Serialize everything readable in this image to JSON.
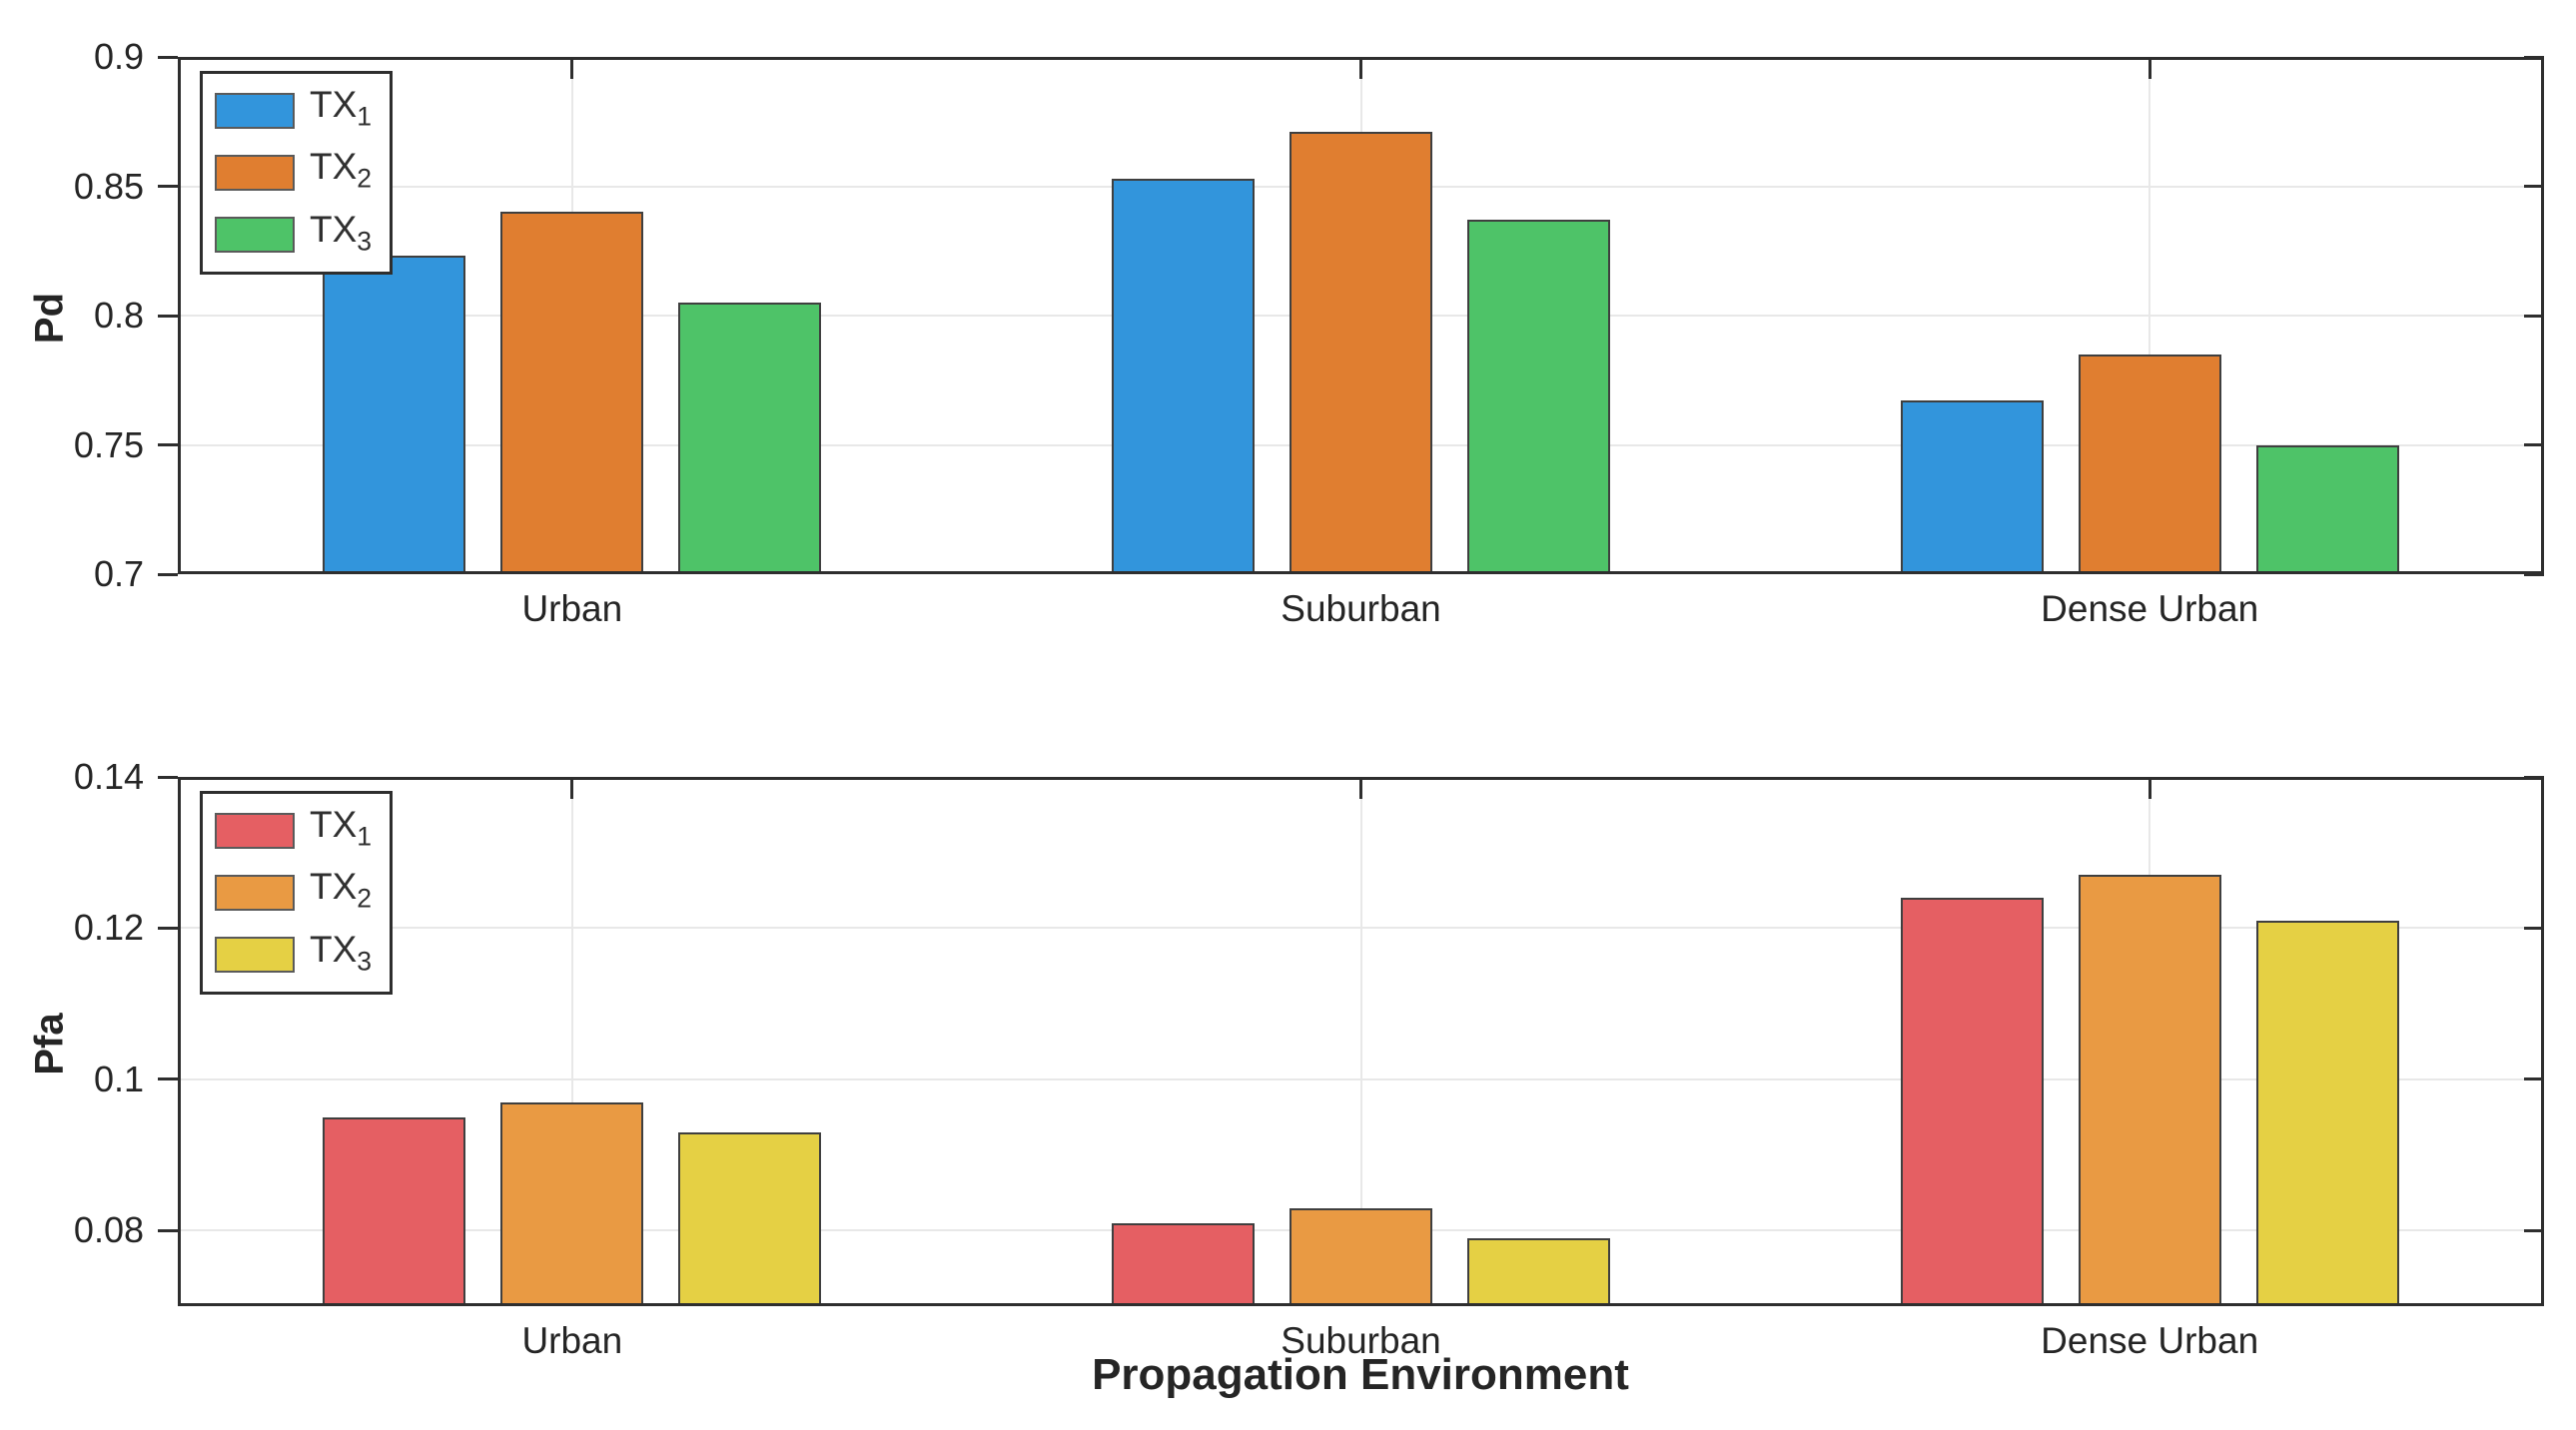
{
  "figure": {
    "background": "#ffffff",
    "axis_color": "#2e2e2e",
    "grid_color": "#e8e8e8",
    "text_color": "#252525"
  },
  "chart_data": [
    {
      "type": "bar",
      "ylabel": "Pd",
      "categories": [
        "Urban",
        "Suburban",
        "Dense Urban"
      ],
      "series": [
        {
          "name": "TX",
          "sub": "1",
          "color": "#3295dc",
          "values": [
            0.823,
            0.853,
            0.767
          ]
        },
        {
          "name": "TX",
          "sub": "2",
          "color": "#e07e30",
          "values": [
            0.84,
            0.871,
            0.785
          ]
        },
        {
          "name": "TX",
          "sub": "3",
          "color": "#4ec368",
          "values": [
            0.805,
            0.837,
            0.75
          ]
        }
      ],
      "ylim": [
        0.7,
        0.9
      ],
      "yticks": [
        0.7,
        0.75,
        0.8,
        0.85,
        0.9
      ],
      "ytick_labels": [
        "0.7",
        "0.75",
        "0.8",
        "0.85",
        "0.9"
      ],
      "grid": true,
      "legend_position": "top-left"
    },
    {
      "type": "bar",
      "ylabel": "Pfa",
      "xlabel": "Propagation Environment",
      "categories": [
        "Urban",
        "Suburban",
        "Dense Urban"
      ],
      "series": [
        {
          "name": "TX",
          "sub": "1",
          "color": "#e55f63",
          "values": [
            0.095,
            0.081,
            0.124
          ]
        },
        {
          "name": "TX",
          "sub": "2",
          "color": "#e99a43",
          "values": [
            0.097,
            0.083,
            0.127
          ]
        },
        {
          "name": "TX",
          "sub": "3",
          "color": "#e5d044",
          "values": [
            0.093,
            0.079,
            0.121
          ]
        }
      ],
      "ylim": [
        0.07,
        0.14
      ],
      "yticks": [
        0.08,
        0.1,
        0.12,
        0.14
      ],
      "ytick_labels": [
        "0.08",
        "0.1",
        "0.12",
        "0.14"
      ],
      "grid": true,
      "legend_position": "top-left"
    }
  ]
}
